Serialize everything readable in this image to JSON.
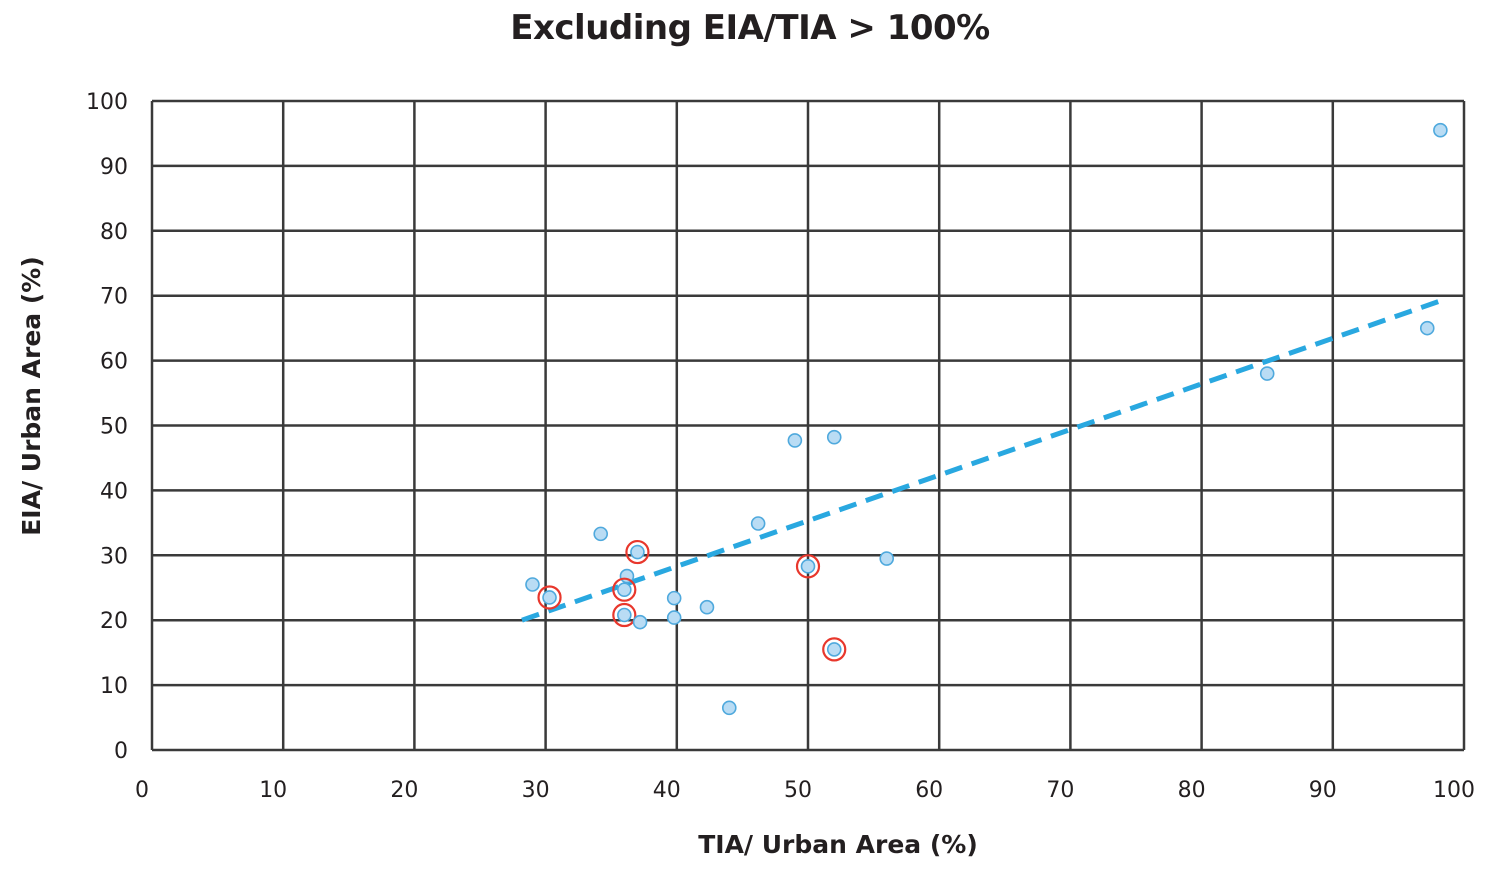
{
  "chart_data": {
    "type": "scatter",
    "title": "Excluding EIA/TIA > 100%",
    "xlabel": "TIA/ Urban Area (%)",
    "ylabel": "EIA/ Urban Area (%)",
    "xlim": [
      0,
      100
    ],
    "ylim": [
      0,
      100
    ],
    "xticks": [
      "0",
      "10",
      "20",
      "30",
      "40",
      "50",
      "60",
      "70",
      "80",
      "90",
      "100"
    ],
    "yticks": [
      "0",
      "10",
      "20",
      "30",
      "40",
      "50",
      "60",
      "70",
      "80",
      "90",
      "100"
    ],
    "grid": true,
    "series": [
      {
        "points": [
          {
            "x": 29,
            "y": 25.5,
            "highlighted": false
          },
          {
            "x": 30.3,
            "y": 23.5,
            "highlighted": true
          },
          {
            "x": 34.2,
            "y": 33.3,
            "highlighted": false
          },
          {
            "x": 36.2,
            "y": 26.8,
            "highlighted": false
          },
          {
            "x": 36.0,
            "y": 24.7,
            "highlighted": true
          },
          {
            "x": 36.0,
            "y": 20.8,
            "highlighted": true
          },
          {
            "x": 37.0,
            "y": 30.5,
            "highlighted": true
          },
          {
            "x": 37.2,
            "y": 19.7,
            "highlighted": false
          },
          {
            "x": 39.8,
            "y": 23.4,
            "highlighted": false
          },
          {
            "x": 39.8,
            "y": 20.4,
            "highlighted": false
          },
          {
            "x": 42.3,
            "y": 22.0,
            "highlighted": false
          },
          {
            "x": 44.0,
            "y": 6.5,
            "highlighted": false
          },
          {
            "x": 46.2,
            "y": 34.9,
            "highlighted": false
          },
          {
            "x": 49.0,
            "y": 47.7,
            "highlighted": false
          },
          {
            "x": 50.0,
            "y": 28.3,
            "highlighted": true
          },
          {
            "x": 52.0,
            "y": 48.2,
            "highlighted": false
          },
          {
            "x": 52.0,
            "y": 15.5,
            "highlighted": true
          },
          {
            "x": 56.0,
            "y": 29.5,
            "highlighted": false
          },
          {
            "x": 85.0,
            "y": 58.0,
            "highlighted": false
          },
          {
            "x": 97.2,
            "y": 65.0,
            "highlighted": false
          },
          {
            "x": 98.2,
            "y": 95.5,
            "highlighted": false
          }
        ]
      }
    ],
    "trendline": {
      "style": "dashed",
      "x": [
        28.2,
        98.2
      ],
      "y": [
        20.0,
        69.2
      ]
    },
    "colors": {
      "point_fill": "#b9dcf4",
      "point_stroke": "#4fa9dd",
      "highlight_ring": "#e8372c",
      "trendline": "#29a8e0",
      "grid": "#3a3a3a",
      "text": "#231f20"
    }
  }
}
